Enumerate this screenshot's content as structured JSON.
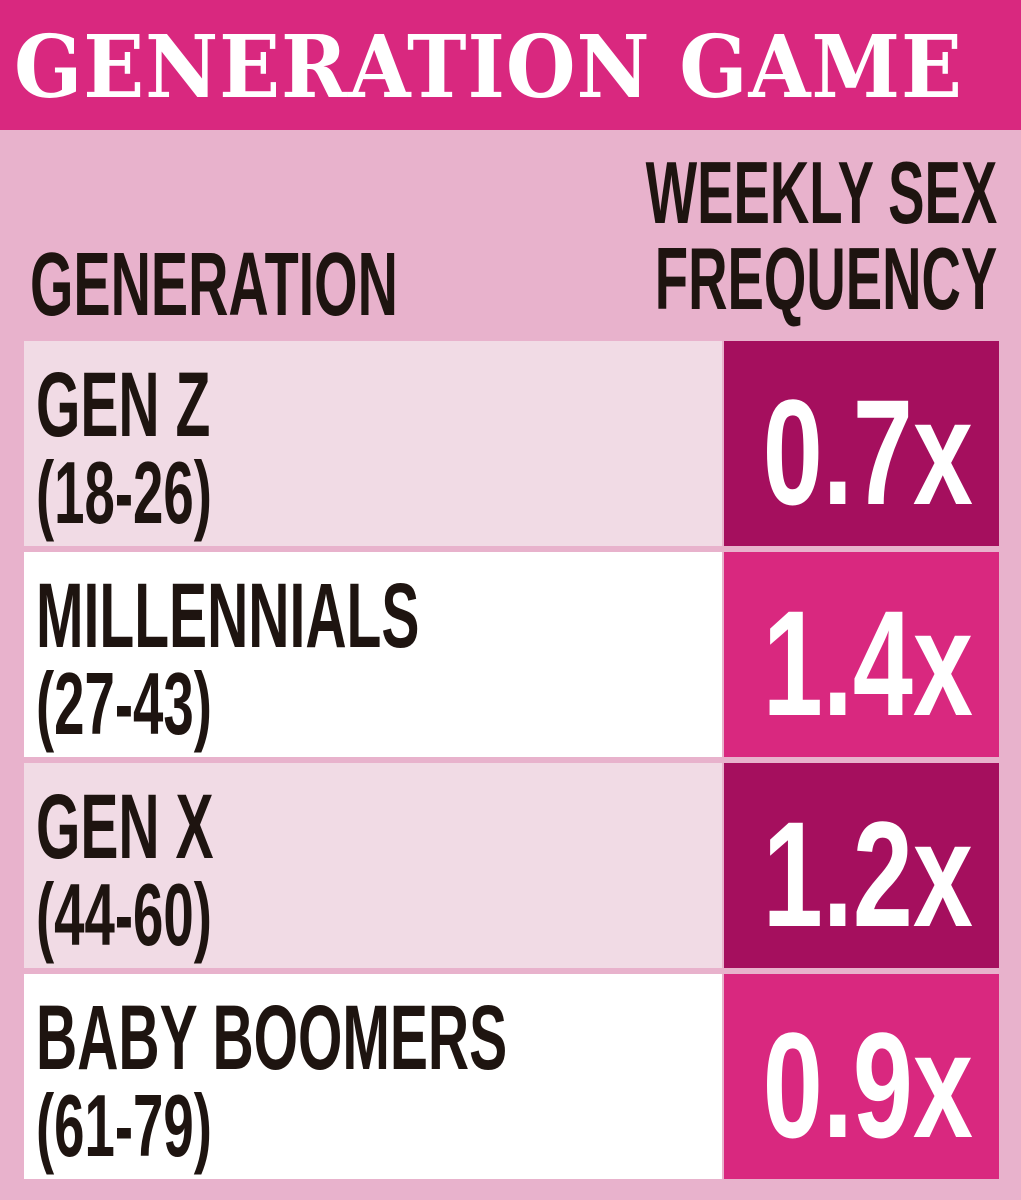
{
  "header": {
    "title": "GENERATION GAME",
    "col_generation": "GENERATION",
    "col_frequency_line1": "WEEKLY SEX",
    "col_frequency_line2": "FREQUENCY"
  },
  "colors": {
    "title_bar": "#d9287f",
    "background": "#e8b2cc",
    "label_light": "#f1dbe5",
    "label_white": "#ffffff",
    "value_dark": "#a50f5e",
    "value_bright": "#d9287f",
    "text_dark": "#1e1410",
    "text_light": "#ffffff"
  },
  "chart_data": {
    "type": "table",
    "title": "GENERATION GAME",
    "columns": [
      "GENERATION",
      "WEEKLY SEX FREQUENCY"
    ],
    "rows": [
      {
        "generation": "GEN Z",
        "ages": "(18-26)",
        "frequency": 0.7,
        "frequency_label": "0.7x"
      },
      {
        "generation": "MILLENNIALS",
        "ages": "(27-43)",
        "frequency": 1.4,
        "frequency_label": "1.4x"
      },
      {
        "generation": "GEN X",
        "ages": "(44-60)",
        "frequency": 1.2,
        "frequency_label": "1.2x"
      },
      {
        "generation": "BABY BOOMERS",
        "ages": "(61-79)",
        "frequency": 0.9,
        "frequency_label": "0.9x"
      }
    ]
  }
}
